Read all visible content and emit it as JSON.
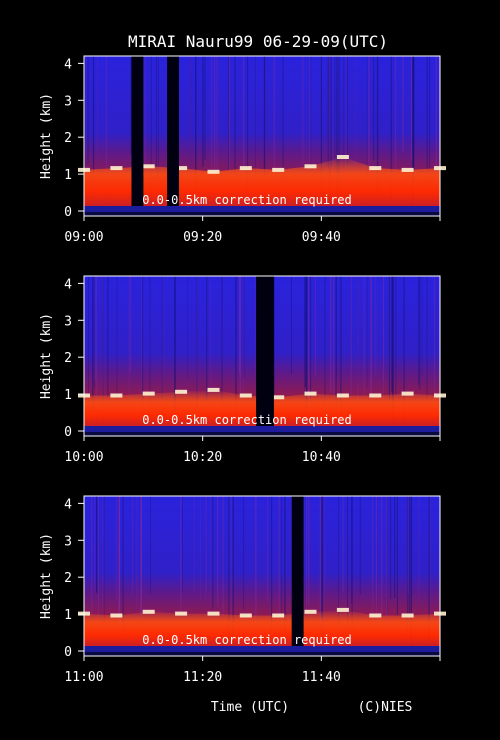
{
  "title": "MIRAI Nauru99 06-29-09(UTC)",
  "xlabel": "Time (UTC)",
  "credit": "(C)NIES",
  "chart_data": [
    {
      "type": "heatmap",
      "ylabel": "Height (km)",
      "yticks": [
        "0",
        "1",
        "2",
        "3",
        "4"
      ],
      "ylim": [
        0,
        4.2
      ],
      "xlim": [
        "09:00",
        "10:00"
      ],
      "xticks": [
        "09:00",
        "09:20",
        "09:40"
      ],
      "note": "0.0-0.5km correction required",
      "cloud_base_km": [
        0.95,
        1.0,
        1.05,
        1.0,
        0.9,
        1.0,
        0.95,
        1.05,
        1.3,
        1.0,
        0.95,
        1.0
      ],
      "gaps": [
        [
          "09:08",
          "09:10"
        ],
        [
          "09:14",
          "09:16"
        ]
      ]
    },
    {
      "type": "heatmap",
      "ylabel": "Height (km)",
      "yticks": [
        "0",
        "1",
        "2",
        "3",
        "4"
      ],
      "ylim": [
        0,
        4.2
      ],
      "xlim": [
        "10:00",
        "11:00"
      ],
      "xticks": [
        "10:00",
        "10:20",
        "10:40"
      ],
      "note": "0.0-0.5km correction required",
      "cloud_base_km": [
        0.8,
        0.8,
        0.85,
        0.9,
        0.95,
        0.8,
        0.75,
        0.85,
        0.8,
        0.8,
        0.85,
        0.8
      ],
      "gaps": [
        [
          "10:29",
          "10:32"
        ]
      ]
    },
    {
      "type": "heatmap",
      "ylabel": "Height (km)",
      "yticks": [
        "0",
        "1",
        "2",
        "3",
        "4"
      ],
      "ylim": [
        0,
        4.2
      ],
      "xlim": [
        "11:00",
        "12:00"
      ],
      "xticks": [
        "11:00",
        "11:20",
        "11:40"
      ],
      "note": "0.0-0.5km correction required",
      "cloud_base_km": [
        0.85,
        0.8,
        0.9,
        0.85,
        0.85,
        0.8,
        0.8,
        0.9,
        0.95,
        0.8,
        0.8,
        0.85
      ],
      "gaps": [
        [
          "11:35",
          "11:37"
        ]
      ]
    }
  ]
}
